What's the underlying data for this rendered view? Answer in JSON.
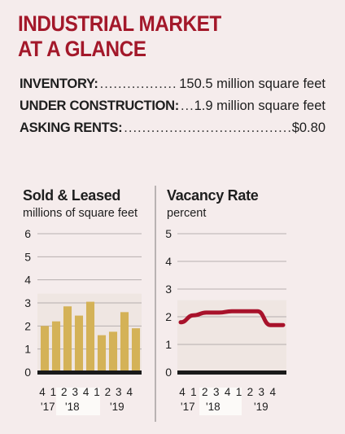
{
  "header": {
    "title_line1": "INDUSTRIAL MARKET",
    "title_line2": "AT A GLANCE"
  },
  "stats": [
    {
      "label": "INVENTORY:",
      "dots": "...............................................",
      "value": "150.5 million square feet"
    },
    {
      "label": "UNDER CONSTRUCTION:",
      "dots": "...........",
      "value": "1.9 million square feet"
    },
    {
      "label": "ASKING RENTS:",
      "dots": "..................................................................",
      "value": "$0.80"
    }
  ],
  "colors": {
    "title": "#a3182a",
    "bar": "#d4b257",
    "line": "#a8122b",
    "highlight": "#fcfaf8"
  },
  "chart_data": [
    {
      "type": "bar",
      "title": "Sold & Leased",
      "ylabel": "millions of square feet",
      "ylim": [
        0,
        6
      ],
      "yticks": [
        "0",
        "1",
        "2",
        "3",
        "4",
        "5",
        "6"
      ],
      "categories": [
        "Q4 '17",
        "Q1 '18",
        "Q2 '18",
        "Q3 '18",
        "Q4 '18",
        "Q1 '19",
        "Q2 '19",
        "Q3 '19",
        "Q4 '19"
      ],
      "quarter_labels": [
        "4",
        "1",
        "2",
        "3",
        "4",
        "1",
        "2",
        "3",
        "4"
      ],
      "year_labels": [
        "'17",
        "'18",
        "'19"
      ],
      "values": [
        2.0,
        2.2,
        2.85,
        2.45,
        3.05,
        1.6,
        1.75,
        2.6,
        1.9
      ],
      "grid": true
    },
    {
      "type": "line",
      "title": "Vacancy Rate",
      "ylabel": "percent",
      "ylim": [
        0,
        5
      ],
      "yticks": [
        "0",
        "1",
        "2",
        "3",
        "4",
        "5"
      ],
      "categories": [
        "Q4 '17",
        "Q1 '18",
        "Q2 '18",
        "Q3 '18",
        "Q4 '18",
        "Q1 '19",
        "Q2 '19",
        "Q3 '19",
        "Q4 '19"
      ],
      "quarter_labels": [
        "4",
        "1",
        "2",
        "3",
        "4",
        "1",
        "2",
        "3",
        "4"
      ],
      "year_labels": [
        "'17",
        "'18",
        "'19"
      ],
      "values": [
        1.8,
        2.05,
        2.15,
        2.15,
        2.2,
        2.2,
        2.2,
        1.7,
        1.7
      ],
      "grid": true
    }
  ]
}
